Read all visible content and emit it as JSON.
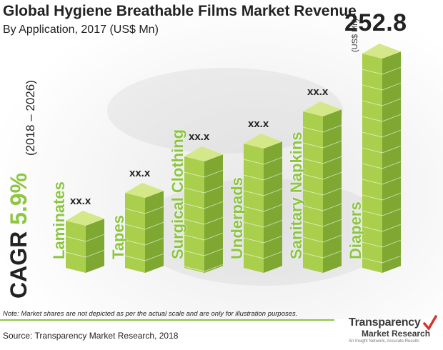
{
  "header": {
    "title": "Global Hygiene Breathable Films Market Revenue",
    "subtitle": "By Application,  2017 (US$ Mn)"
  },
  "cagr": {
    "label": "CAGR",
    "value": "5.9%",
    "period": "(2018 – 2026)"
  },
  "colors": {
    "accent_green": "#8dc63f",
    "cube_light": "#d4e88a",
    "cube_mid": "#a9cf4c",
    "cube_dark": "#7ea832"
  },
  "chart_data": {
    "type": "bar",
    "title": "Global Hygiene Breathable Films Market Revenue",
    "subtitle": "By Application,  2017 (US$ Mn)",
    "categories": [
      "Laminates",
      "Tapes",
      "Surgical Clothing",
      "Underpads",
      "Sanitary Napkins",
      "Diapers"
    ],
    "value_labels": [
      "xx.x",
      "xx.x",
      "xx.x",
      "xx.x",
      "xx.x",
      "252.8"
    ],
    "values": [
      null,
      null,
      null,
      null,
      null,
      252.8
    ],
    "relative_heights": [
      0.22,
      0.35,
      0.52,
      0.58,
      0.73,
      1.0
    ],
    "unit_label": "(US$ Mn)",
    "ylabel": "",
    "xlabel": "",
    "grid": false,
    "legend": "none"
  },
  "note": "Note: Market shares are not depicted as per the actual scale and are only for illustration purposes.",
  "source": "Source: Transparency Market Research, 2018",
  "logo": {
    "name": "Transparency",
    "sub": "Market Research",
    "tagline": "An Insight Network, Accurate Results"
  }
}
